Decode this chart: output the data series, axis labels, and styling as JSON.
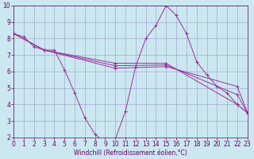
{
  "title": "",
  "xlabel": "Windchill (Refroidissement éolien,°C)",
  "background_color": "#cbe8f0",
  "grid_color": "#9999cc",
  "line_color": "#993399",
  "xlim": [
    0,
    23
  ],
  "ylim": [
    2,
    10
  ],
  "yticks": [
    2,
    3,
    4,
    5,
    6,
    7,
    8,
    9,
    10
  ],
  "xticks": [
    0,
    1,
    2,
    3,
    4,
    5,
    6,
    7,
    8,
    9,
    10,
    11,
    12,
    13,
    14,
    15,
    16,
    17,
    18,
    19,
    20,
    21,
    22,
    23
  ],
  "series_main": {
    "x": [
      0,
      1,
      2,
      3,
      4,
      5,
      6,
      7,
      8,
      9,
      10,
      11,
      12,
      13,
      14,
      15,
      16,
      17,
      18,
      19,
      20,
      21,
      22,
      23
    ],
    "y": [
      8.3,
      8.1,
      7.5,
      7.3,
      7.3,
      6.1,
      4.7,
      3.2,
      2.2,
      1.7,
      1.9,
      3.6,
      6.3,
      8.0,
      8.8,
      10.0,
      9.4,
      8.3,
      6.6,
      5.8,
      5.1,
      4.7,
      4.0,
      3.5
    ]
  },
  "series_lines": [
    {
      "x": [
        0,
        3,
        10,
        15,
        22,
        23
      ],
      "y": [
        8.3,
        7.3,
        6.5,
        6.5,
        4.0,
        3.5
      ]
    },
    {
      "x": [
        0,
        3,
        10,
        15,
        22,
        23
      ],
      "y": [
        8.3,
        7.3,
        6.35,
        6.4,
        4.6,
        3.5
      ]
    },
    {
      "x": [
        0,
        3,
        10,
        15,
        22,
        23
      ],
      "y": [
        8.3,
        7.3,
        6.2,
        6.3,
        5.1,
        3.5
      ]
    }
  ],
  "marker": "+",
  "markersize": 3,
  "linewidth": 0.7,
  "tick_fontsize": 5.5,
  "xlabel_fontsize": 5.5
}
